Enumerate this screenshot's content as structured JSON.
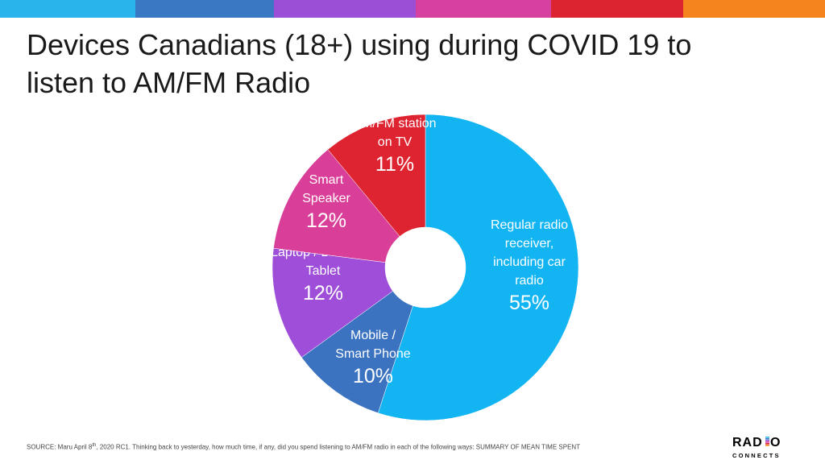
{
  "header": {
    "color_bar": [
      "#29b5ec",
      "#3b78c4",
      "#9b4fd6",
      "#d6409e",
      "#dc2430",
      "#f5841f"
    ]
  },
  "title_lines": [
    "Devices Canadians (18+) using during COVID 19 to",
    "listen to AM/FM Radio"
  ],
  "chart_data": {
    "type": "pie",
    "style": "donut",
    "title": "Devices Canadians (18+) using during COVID 19 to listen to AM/FM Radio",
    "categories": [
      "Regular radio receiver, including car radio",
      "Mobile / Smart Phone",
      "Laptop / Desktop / Tablet",
      "Smart Speaker",
      "AM/FM station on TV"
    ],
    "values": [
      55,
      10,
      12,
      12,
      11
    ],
    "unit": "%",
    "slices": [
      {
        "label_lines": [
          "Regular radio",
          "receiver,",
          "including car",
          "radio"
        ],
        "value_label": "55%",
        "value": 55,
        "color": "#12b4f1"
      },
      {
        "label_lines": [
          "Mobile /",
          "Smart Phone"
        ],
        "value_label": "10%",
        "value": 10,
        "color": "#3b73c0"
      },
      {
        "label_lines": [
          "Laptop / Desktop /",
          "Tablet"
        ],
        "value_label": "12%",
        "value": 12,
        "color": "#9e4ed8"
      },
      {
        "label_lines": [
          "Smart",
          "Speaker"
        ],
        "value_label": "12%",
        "value": 12,
        "color": "#d93f99"
      },
      {
        "label_lines": [
          "AM/FM station",
          "on TV"
        ],
        "value_label": "11%",
        "value": 11,
        "color": "#dd2430"
      }
    ],
    "legend": "none"
  },
  "source": {
    "prefix": "SOURCE:  Maru April 8",
    "sup": "th",
    "text": ", 2020 RC1. Thinking back to yesterday, how much time, if any, did you spend listening to AM/FM  radio in each of the following ways: SUMMARY  OF MEAN TIME SPENT"
  },
  "logo": {
    "word_a": "RAD",
    "word_b": "O",
    "sub": "CONNECTS",
    "bar_colors": [
      "#29b5ec",
      "#3b78c4",
      "#9b4fd6",
      "#d6409e",
      "#dc2430",
      "#f5841f"
    ]
  }
}
